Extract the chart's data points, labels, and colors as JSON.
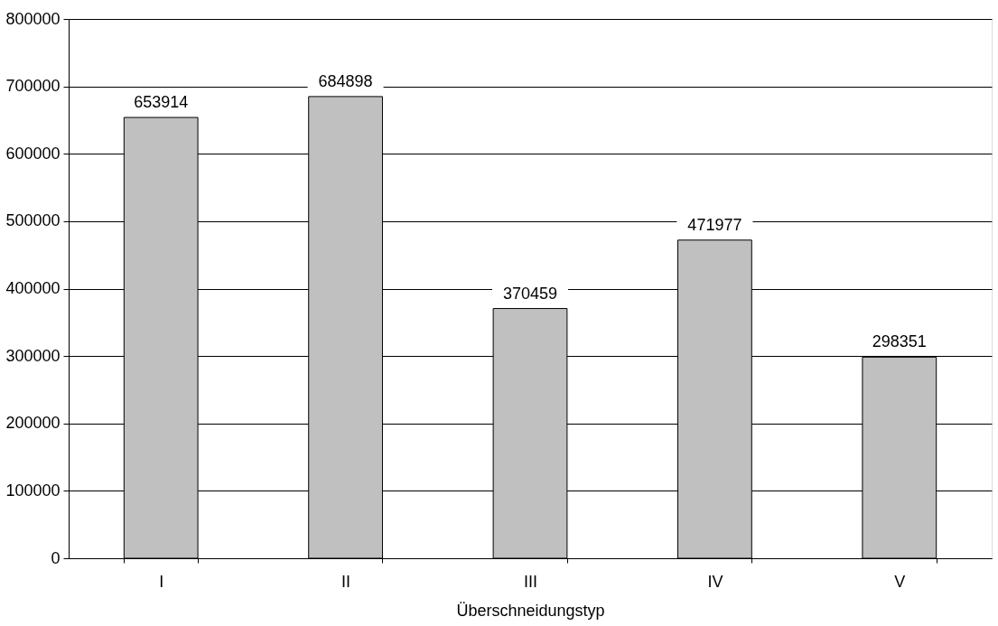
{
  "chart_data": {
    "type": "bar",
    "xlabel": "Überschneidungstyp",
    "categories": [
      "I",
      "II",
      "III",
      "IV",
      "V"
    ],
    "values": [
      653914,
      684898,
      370459,
      471977,
      298351
    ],
    "color": "#c0c0c0",
    "ylim": [
      0,
      800000
    ],
    "yticks": [
      0,
      100000,
      200000,
      300000,
      400000,
      500000,
      600000,
      700000,
      800000
    ],
    "grid": "y",
    "data_labels": true
  }
}
